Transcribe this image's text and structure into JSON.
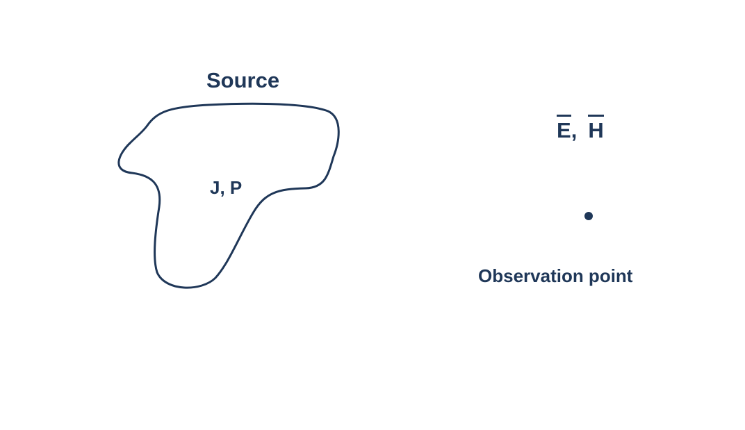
{
  "diagram": {
    "source_title": "Source",
    "source_quantities": "J, P",
    "fields": {
      "e_field": "E",
      "separator": ",",
      "h_field": "H"
    },
    "observation_label": "Observation point",
    "colors": {
      "ink": "#1f3758",
      "background": "#ffffff"
    }
  }
}
